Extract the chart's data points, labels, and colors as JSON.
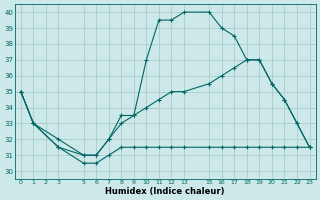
{
  "xlabel": "Humidex (Indice chaleur)",
  "bg_color": "#cce8e8",
  "grid_color": "#aacccc",
  "line_color": "#006666",
  "xlim": [
    -0.5,
    23.5
  ],
  "ylim": [
    29.5,
    40.5
  ],
  "xticks": [
    0,
    1,
    2,
    3,
    5,
    6,
    7,
    8,
    9,
    10,
    11,
    12,
    13,
    15,
    16,
    17,
    18,
    19,
    20,
    21,
    22,
    23
  ],
  "yticks": [
    30,
    31,
    32,
    33,
    34,
    35,
    36,
    37,
    38,
    39,
    40
  ],
  "line1_x": [
    0,
    1,
    3,
    5,
    6,
    7,
    8,
    9,
    10,
    11,
    12,
    13,
    15,
    16,
    17,
    18,
    19,
    20,
    21,
    22,
    23
  ],
  "line1_y": [
    35,
    33,
    31.5,
    31,
    31,
    32,
    33.5,
    33.5,
    37,
    39.5,
    39.5,
    40,
    40,
    39,
    38.5,
    37,
    37,
    35.5,
    34.5,
    33,
    31.5
  ],
  "line2_x": [
    0,
    1,
    3,
    5,
    6,
    7,
    8,
    9,
    10,
    11,
    12,
    13,
    15,
    16,
    17,
    18,
    19,
    20,
    21,
    22,
    23
  ],
  "line2_y": [
    35,
    33,
    32,
    31,
    31,
    32,
    33,
    33.5,
    34,
    34.5,
    35,
    35,
    35.5,
    36,
    36.5,
    37,
    37,
    35.5,
    34.5,
    33,
    31.5
  ],
  "line3_x": [
    0,
    1,
    3,
    5,
    6,
    7,
    8,
    9,
    10,
    11,
    12,
    13,
    15,
    16,
    17,
    18,
    19,
    20,
    21,
    22,
    23
  ],
  "line3_y": [
    35,
    33,
    31.5,
    30.5,
    30.5,
    31,
    31.5,
    31.5,
    31.5,
    31.5,
    31.5,
    31.5,
    31.5,
    31.5,
    31.5,
    31.5,
    31.5,
    31.5,
    31.5,
    31.5,
    31.5
  ]
}
